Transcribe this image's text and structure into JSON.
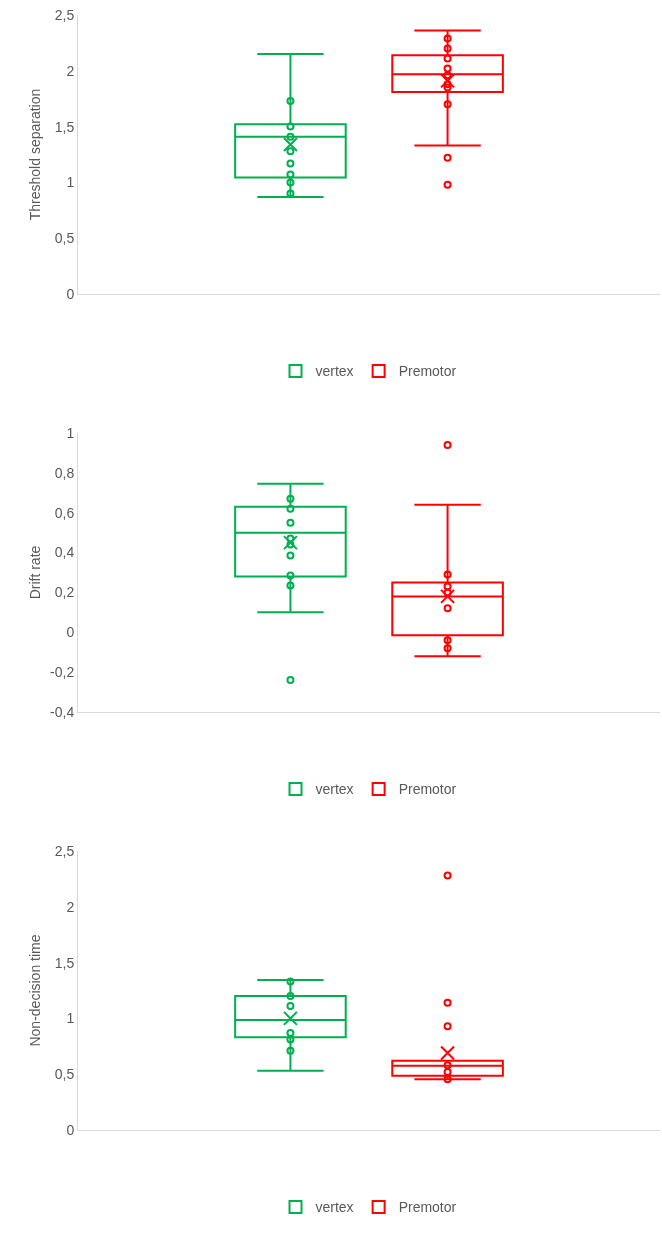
{
  "chart_data": [
    {
      "type": "box",
      "ylabel": "Threshold separation",
      "categories": [
        null
      ],
      "ylim": [
        0,
        2.5
      ],
      "yticks": [
        0,
        {
          "value": 0.5,
          "label": "0,5"
        },
        1,
        {
          "value": 1.5,
          "label": "1,5"
        },
        2,
        {
          "value": 2.5,
          "label": "2,5"
        }
      ],
      "legend": "bottom",
      "tick_labels": "y",
      "series": [
        {
          "name": "vertex",
          "color": "#00b050",
          "boxes": [
            {
              "low": 0.87,
              "q1": 1.045,
              "median": 1.41,
              "q3": 1.52,
              "high": 2.15,
              "mean": 1.34,
              "outliers": [
                1.73,
                1.5,
                1.41,
                1.28,
                1.17,
                1.07,
                1.0,
                0.9
              ]
            }
          ]
        },
        {
          "name": "Premotor",
          "color": "#ff0000",
          "boxes": [
            {
              "low": 1.33,
              "q1": 1.81,
              "median": 1.97,
              "q3": 2.14,
              "high": 2.36,
              "mean": 1.91,
              "outliers": [
                2.29,
                2.2,
                2.11,
                2.02,
                1.96,
                1.88,
                1.85,
                1.7,
                1.22,
                0.98
              ]
            }
          ]
        }
      ]
    },
    {
      "type": "box",
      "ylabel": "Drift rate",
      "categories": [
        null
      ],
      "ylim": [
        -0.4,
        1
      ],
      "yticks": [
        {
          "value": -0.4,
          "label": "-0,4"
        },
        {
          "value": -0.2,
          "label": "-0,2"
        },
        0,
        {
          "value": 0.2,
          "label": "0,2"
        },
        {
          "value": 0.4,
          "label": "0,4"
        },
        {
          "value": 0.6,
          "label": "0,6"
        },
        {
          "value": 0.8,
          "label": "0,8"
        },
        1
      ],
      "legend": "bottom",
      "tick_labels": "y",
      "series": [
        {
          "name": "vertex",
          "color": "#00b050",
          "boxes": [
            {
              "low": 0.1,
              "q1": 0.28,
              "median": 0.5,
              "q3": 0.63,
              "high": 0.745,
              "mean": 0.45,
              "outliers": [
                0.67,
                0.62,
                0.55,
                0.47,
                0.44,
                0.385,
                0.285,
                0.235,
                -0.24
              ]
            }
          ]
        },
        {
          "name": "Premotor",
          "color": "#ff0000",
          "boxes": [
            {
              "low": -0.12,
              "q1": -0.015,
              "median": 0.18,
              "q3": 0.25,
              "high": 0.64,
              "mean": 0.18,
              "outliers": [
                0.94,
                0.29,
                0.23,
                0.2,
                0.12,
                -0.04,
                -0.08
              ]
            }
          ]
        }
      ]
    },
    {
      "type": "box",
      "ylabel": "Non-decision time",
      "categories": [
        null
      ],
      "ylim": [
        0,
        2.5
      ],
      "yticks": [
        0,
        {
          "value": 0.5,
          "label": "0,5"
        },
        1,
        {
          "value": 1.5,
          "label": "1,5"
        },
        2,
        {
          "value": 2.5,
          "label": "2,5"
        }
      ],
      "legend": "bottom",
      "tick_labels": "y",
      "series": [
        {
          "name": "vertex",
          "color": "#00b050",
          "boxes": [
            {
              "low": 0.53,
              "q1": 0.83,
              "median": 0.985,
              "q3": 1.2,
              "high": 1.345,
              "mean": 1.0,
              "outliers": [
                1.33,
                1.2,
                1.11,
                0.87,
                0.81,
                0.71
              ]
            }
          ]
        },
        {
          "name": "Premotor",
          "color": "#ff0000",
          "boxes": [
            {
              "low": 0.455,
              "q1": 0.485,
              "median": 0.575,
              "q3": 0.62,
              "high": 0.62,
              "mean": 0.69,
              "outliers": [
                2.28,
                1.14,
                0.93,
                0.58,
                0.52,
                0.455
              ]
            }
          ]
        }
      ]
    }
  ]
}
